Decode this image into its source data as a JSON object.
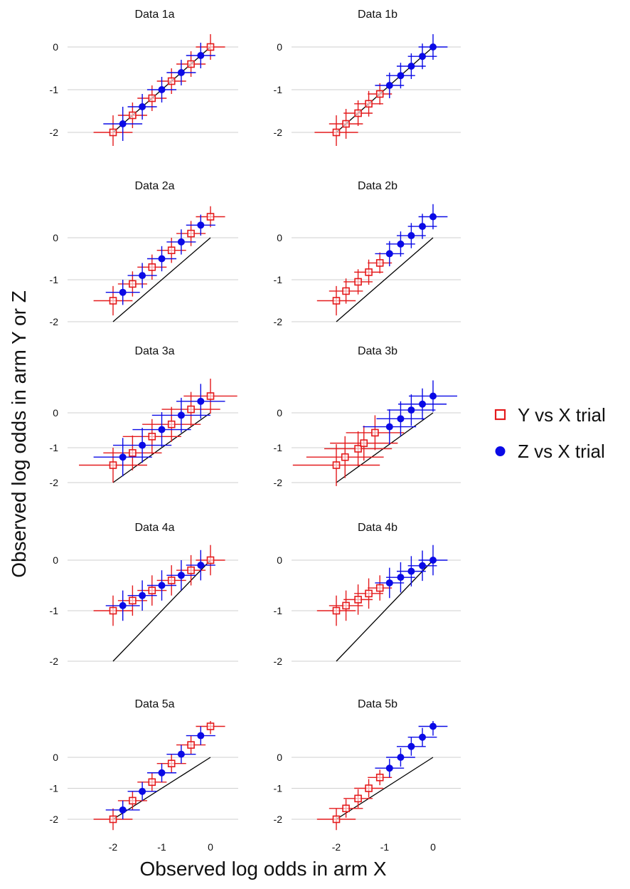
{
  "figure": {
    "xlabel": "Observed log odds in arm X",
    "ylabel": "Observed log odds in arm Y or Z",
    "legend": {
      "position": "right",
      "items": [
        {
          "label": "Y vs X trial",
          "marker": "open-square",
          "color": "#e41a1c"
        },
        {
          "label": "Z vs X trial",
          "marker": "filled-circle",
          "color": "#0a0ae6"
        }
      ]
    },
    "reference_line": "y = x",
    "grid": "horizontal"
  },
  "chart_data": [
    {
      "type": "scatter",
      "title": "Data 1a",
      "xlim": [
        -2.3,
        0.3
      ],
      "ylim": [
        -2.2,
        0.2
      ],
      "yticks": [
        -2,
        -1,
        0
      ],
      "series": [
        {
          "name": "Y vs X trial",
          "color": "#e41a1c",
          "marker": "open-square",
          "x": [
            -2,
            -1.6,
            -1.2,
            -0.8,
            -0.4,
            0
          ],
          "y": [
            -2,
            -1.6,
            -1.2,
            -0.8,
            -0.4,
            0
          ],
          "xerr": [
            0.4,
            0.3,
            0.3,
            0.3,
            0.3,
            0.3
          ],
          "yerr": [
            0.4,
            0.3,
            0.3,
            0.3,
            0.3,
            0.3
          ]
        },
        {
          "name": "Z vs X trial",
          "color": "#0a0ae6",
          "marker": "filled-circle",
          "x": [
            -1.8,
            -1.4,
            -1,
            -0.6,
            -0.2
          ],
          "y": [
            -1.8,
            -1.4,
            -1,
            -0.6,
            -0.2
          ],
          "xerr": [
            0.4,
            0.3,
            0.3,
            0.3,
            0.3
          ],
          "yerr": [
            0.4,
            0.3,
            0.3,
            0.3,
            0.3
          ]
        }
      ]
    },
    {
      "type": "scatter",
      "title": "Data 1b",
      "xlim": [
        -2.3,
        0.3
      ],
      "ylim": [
        -2.2,
        0.2
      ],
      "yticks": [
        -2,
        -1,
        0
      ],
      "series": [
        {
          "name": "Y vs X trial",
          "color": "#e41a1c",
          "marker": "open-square",
          "x": [
            -2,
            -1.8,
            -1.55,
            -1.33,
            -1.1
          ],
          "y": [
            -2,
            -1.8,
            -1.55,
            -1.33,
            -1.1
          ],
          "xerr": [
            0.45,
            0.35,
            0.3,
            0.3,
            0.25
          ],
          "yerr": [
            0.4,
            0.35,
            0.3,
            0.3,
            0.25
          ]
        },
        {
          "name": "Z vs X trial",
          "color": "#0a0ae6",
          "marker": "filled-circle",
          "x": [
            -0.9,
            -0.67,
            -0.45,
            -0.22,
            0
          ],
          "y": [
            -0.9,
            -0.67,
            -0.45,
            -0.22,
            0
          ],
          "xerr": [
            0.3,
            0.3,
            0.3,
            0.3,
            0.3
          ],
          "yerr": [
            0.3,
            0.3,
            0.3,
            0.3,
            0.3
          ]
        }
      ]
    },
    {
      "type": "scatter",
      "title": "Data 2a",
      "xlim": [
        -2.3,
        0.3
      ],
      "ylim": [
        -2.0,
        0.7
      ],
      "yticks": [
        -2,
        -1,
        0
      ],
      "series": [
        {
          "name": "Y vs X trial",
          "color": "#e41a1c",
          "marker": "open-square",
          "x": [
            -2,
            -1.6,
            -1.2,
            -0.8,
            -0.4,
            0
          ],
          "y": [
            -1.5,
            -1.1,
            -0.7,
            -0.3,
            0.1,
            0.5
          ],
          "xerr": [
            0.4,
            0.3,
            0.3,
            0.3,
            0.3,
            0.3
          ],
          "yerr": [
            0.35,
            0.3,
            0.3,
            0.3,
            0.3,
            0.25
          ]
        },
        {
          "name": "Z vs X trial",
          "color": "#0a0ae6",
          "marker": "filled-circle",
          "x": [
            -1.8,
            -1.4,
            -1,
            -0.6,
            -0.2
          ],
          "y": [
            -1.3,
            -0.9,
            -0.5,
            -0.1,
            0.3
          ],
          "xerr": [
            0.35,
            0.3,
            0.3,
            0.3,
            0.3
          ],
          "yerr": [
            0.3,
            0.3,
            0.3,
            0.3,
            0.25
          ]
        }
      ]
    },
    {
      "type": "scatter",
      "title": "Data 2b",
      "xlim": [
        -2.3,
        0.3
      ],
      "ylim": [
        -2.0,
        0.7
      ],
      "yticks": [
        -2,
        -1,
        0
      ],
      "series": [
        {
          "name": "Y vs X trial",
          "color": "#e41a1c",
          "marker": "open-square",
          "x": [
            -2,
            -1.8,
            -1.55,
            -1.33,
            -1.1
          ],
          "y": [
            -1.5,
            -1.27,
            -1.05,
            -0.82,
            -0.6
          ],
          "xerr": [
            0.4,
            0.35,
            0.3,
            0.3,
            0.25
          ],
          "yerr": [
            0.35,
            0.3,
            0.3,
            0.3,
            0.25
          ]
        },
        {
          "name": "Z vs X trial",
          "color": "#0a0ae6",
          "marker": "filled-circle",
          "x": [
            -0.9,
            -0.67,
            -0.45,
            -0.22,
            0
          ],
          "y": [
            -0.38,
            -0.15,
            0.05,
            0.27,
            0.5
          ],
          "xerr": [
            0.3,
            0.3,
            0.3,
            0.3,
            0.3
          ],
          "yerr": [
            0.3,
            0.3,
            0.3,
            0.3,
            0.3
          ]
        }
      ]
    },
    {
      "type": "scatter",
      "title": "Data 3a",
      "xlim": [
        -2.3,
        0.3
      ],
      "ylim": [
        -2.2,
        1.1
      ],
      "yticks": [
        -2,
        -1,
        0
      ],
      "series": [
        {
          "name": "Y vs X trial",
          "color": "#e41a1c",
          "marker": "open-square",
          "x": [
            -2,
            -1.6,
            -1.2,
            -0.8,
            -0.4,
            0
          ],
          "y": [
            -1.5,
            -1.15,
            -0.68,
            -0.33,
            0.1,
            0.48
          ],
          "xerr": [
            0.7,
            0.6,
            0.6,
            0.6,
            0.6,
            0.55
          ],
          "yerr": [
            0.5,
            0.5,
            0.5,
            0.5,
            0.5,
            0.5
          ]
        },
        {
          "name": "Z vs X trial",
          "color": "#0a0ae6",
          "marker": "filled-circle",
          "x": [
            -1.8,
            -1.4,
            -1,
            -0.6,
            -0.2
          ],
          "y": [
            -1.27,
            -0.93,
            -0.48,
            -0.07,
            0.33
          ],
          "xerr": [
            0.6,
            0.6,
            0.6,
            0.6,
            0.5
          ],
          "yerr": [
            0.55,
            0.5,
            0.5,
            0.5,
            0.5
          ]
        }
      ]
    },
    {
      "type": "scatter",
      "title": "Data 3b",
      "xlim": [
        -2.3,
        0.3
      ],
      "ylim": [
        -2.2,
        1.1
      ],
      "yticks": [
        -2,
        -1,
        0
      ],
      "series": [
        {
          "name": "Y vs X trial",
          "color": "#e41a1c",
          "marker": "open-square",
          "x": [
            -2,
            -1.82,
            -1.55,
            -1.43,
            -1.2
          ],
          "y": [
            -1.5,
            -1.27,
            -1.03,
            -0.87,
            -0.57
          ],
          "xerr": [
            0.9,
            0.8,
            0.7,
            0.7,
            0.6
          ],
          "yerr": [
            0.6,
            0.6,
            0.5,
            0.5,
            0.5
          ]
        },
        {
          "name": "Z vs X trial",
          "color": "#0a0ae6",
          "marker": "filled-circle",
          "x": [
            -0.9,
            -0.67,
            -0.45,
            -0.22,
            0
          ],
          "y": [
            -0.4,
            -0.17,
            0.08,
            0.25,
            0.48
          ],
          "xerr": [
            0.55,
            0.5,
            0.5,
            0.5,
            0.5
          ],
          "yerr": [
            0.5,
            0.5,
            0.45,
            0.45,
            0.45
          ]
        }
      ]
    },
    {
      "type": "scatter",
      "title": "Data 4a",
      "xlim": [
        -2.3,
        0.3
      ],
      "ylim": [
        -2.2,
        0.3
      ],
      "yticks": [
        -2,
        -1,
        0
      ],
      "series": [
        {
          "name": "Y vs X trial",
          "color": "#e41a1c",
          "marker": "open-square",
          "x": [
            -2,
            -1.6,
            -1.2,
            -0.8,
            -0.4,
            0
          ],
          "y": [
            -1,
            -0.8,
            -0.6,
            -0.4,
            -0.2,
            0
          ],
          "xerr": [
            0.4,
            0.3,
            0.3,
            0.3,
            0.3,
            0.3
          ],
          "yerr": [
            0.3,
            0.3,
            0.3,
            0.3,
            0.3,
            0.3
          ]
        },
        {
          "name": "Z vs X trial",
          "color": "#0a0ae6",
          "marker": "filled-circle",
          "x": [
            -1.8,
            -1.4,
            -1,
            -0.6,
            -0.2
          ],
          "y": [
            -0.9,
            -0.7,
            -0.5,
            -0.3,
            -0.1
          ],
          "xerr": [
            0.35,
            0.3,
            0.3,
            0.3,
            0.3
          ],
          "yerr": [
            0.3,
            0.3,
            0.3,
            0.3,
            0.3
          ]
        }
      ]
    },
    {
      "type": "scatter",
      "title": "Data 4b",
      "xlim": [
        -2.3,
        0.3
      ],
      "ylim": [
        -2.2,
        0.3
      ],
      "yticks": [
        -2,
        -1,
        0
      ],
      "series": [
        {
          "name": "Y vs X trial",
          "color": "#e41a1c",
          "marker": "open-square",
          "x": [
            -2,
            -1.8,
            -1.55,
            -1.33,
            -1.1
          ],
          "y": [
            -1,
            -0.9,
            -0.78,
            -0.66,
            -0.55
          ],
          "xerr": [
            0.4,
            0.35,
            0.3,
            0.3,
            0.25
          ],
          "yerr": [
            0.3,
            0.3,
            0.3,
            0.3,
            0.25
          ]
        },
        {
          "name": "Z vs X trial",
          "color": "#0a0ae6",
          "marker": "filled-circle",
          "x": [
            -0.9,
            -0.67,
            -0.45,
            -0.22,
            0
          ],
          "y": [
            -0.45,
            -0.34,
            -0.22,
            -0.11,
            0
          ],
          "xerr": [
            0.3,
            0.3,
            0.3,
            0.3,
            0.3
          ],
          "yerr": [
            0.3,
            0.3,
            0.3,
            0.3,
            0.3
          ]
        }
      ]
    },
    {
      "type": "scatter",
      "title": "Data 5a",
      "xlim": [
        -2.3,
        0.3
      ],
      "ylim": [
        -2.2,
        1.2
      ],
      "yticks": [
        -2,
        -1,
        0
      ],
      "xticks": [
        -2,
        -1,
        0
      ],
      "series": [
        {
          "name": "Y vs X trial",
          "color": "#e41a1c",
          "marker": "open-square",
          "x": [
            -2,
            -1.6,
            -1.2,
            -0.8,
            -0.4,
            0
          ],
          "y": [
            -2,
            -1.4,
            -0.8,
            -0.2,
            0.4,
            1
          ],
          "xerr": [
            0.4,
            0.3,
            0.3,
            0.3,
            0.3,
            0.3
          ],
          "yerr": [
            0.35,
            0.3,
            0.3,
            0.3,
            0.3,
            0.25
          ]
        },
        {
          "name": "Z vs X trial",
          "color": "#0a0ae6",
          "marker": "filled-circle",
          "x": [
            -1.8,
            -1.4,
            -1,
            -0.6,
            -0.2
          ],
          "y": [
            -1.7,
            -1.1,
            -0.5,
            0.1,
            0.7
          ],
          "xerr": [
            0.35,
            0.3,
            0.3,
            0.3,
            0.3
          ],
          "yerr": [
            0.3,
            0.3,
            0.3,
            0.3,
            0.3
          ]
        }
      ]
    },
    {
      "type": "scatter",
      "title": "Data 5b",
      "xlim": [
        -2.3,
        0.3
      ],
      "ylim": [
        -2.2,
        1.2
      ],
      "yticks": [
        -2,
        -1,
        0
      ],
      "xticks": [
        -2,
        -1,
        0
      ],
      "series": [
        {
          "name": "Y vs X trial",
          "color": "#e41a1c",
          "marker": "open-square",
          "x": [
            -2,
            -1.8,
            -1.55,
            -1.33,
            -1.1
          ],
          "y": [
            -2,
            -1.65,
            -1.33,
            -1,
            -0.65
          ],
          "xerr": [
            0.4,
            0.35,
            0.3,
            0.3,
            0.25
          ],
          "yerr": [
            0.35,
            0.3,
            0.3,
            0.3,
            0.25
          ]
        },
        {
          "name": "Z vs X trial",
          "color": "#0a0ae6",
          "marker": "filled-circle",
          "x": [
            -0.9,
            -0.67,
            -0.45,
            -0.22,
            0
          ],
          "y": [
            -0.35,
            0,
            0.35,
            0.65,
            1
          ],
          "xerr": [
            0.3,
            0.3,
            0.3,
            0.3,
            0.3
          ],
          "yerr": [
            0.3,
            0.3,
            0.3,
            0.3,
            0.3
          ]
        }
      ]
    }
  ]
}
